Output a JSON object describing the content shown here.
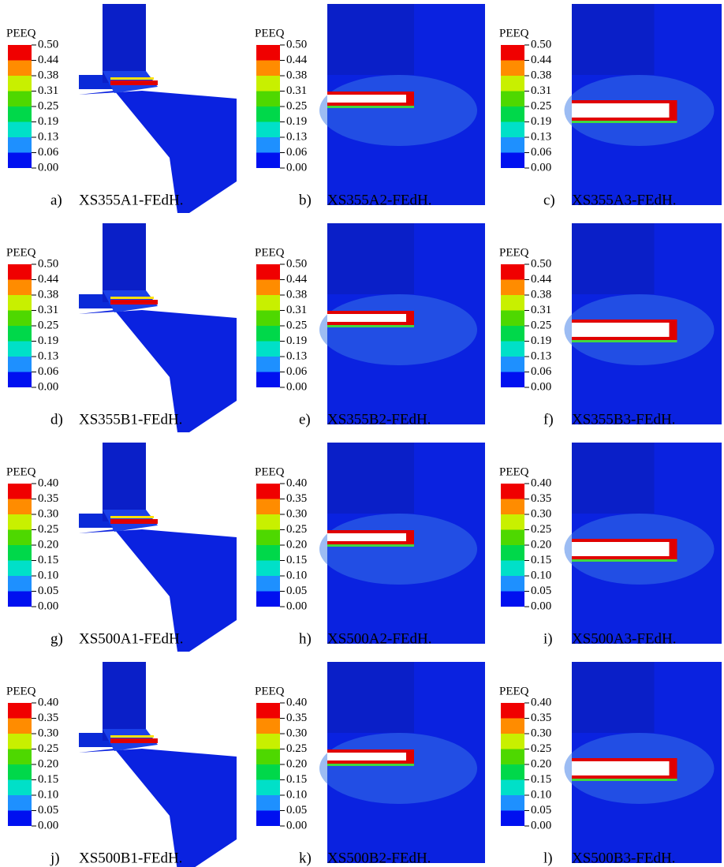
{
  "panels": [
    {
      "label": "a)",
      "caption": "XS355A1-FEdH.",
      "legend": {
        "title": "PEEQ",
        "labels": [
          "0.50",
          "0.44",
          "0.38",
          "0.31",
          "0.25",
          "0.19",
          "0.13",
          "0.06",
          "0.00"
        ]
      }
    },
    {
      "label": "b)",
      "caption": "XS355A2-FEdH.",
      "legend": {
        "title": "PEEQ",
        "labels": [
          "0.50",
          "0.44",
          "0.38",
          "0.31",
          "0.25",
          "0.19",
          "0.13",
          "0.06",
          "0.00"
        ]
      }
    },
    {
      "label": "c)",
      "caption": "XS355A3-FEdH.",
      "legend": {
        "title": "PEEQ",
        "labels": [
          "0.50",
          "0.44",
          "0.38",
          "0.31",
          "0.25",
          "0.19",
          "0.13",
          "0.06",
          "0.00"
        ]
      }
    },
    {
      "label": "d)",
      "caption": "XS355B1-FEdH.",
      "legend": {
        "title": "PEEQ",
        "labels": [
          "0.50",
          "0.44",
          "0.38",
          "0.31",
          "0.25",
          "0.19",
          "0.13",
          "0.06",
          "0.00"
        ]
      }
    },
    {
      "label": "e)",
      "caption": "XS355B2-FEdH.",
      "legend": {
        "title": "PEEQ",
        "labels": [
          "0.50",
          "0.44",
          "0.38",
          "0.31",
          "0.25",
          "0.19",
          "0.13",
          "0.06",
          "0.00"
        ]
      }
    },
    {
      "label": "f)",
      "caption": "XS355B3-FEdH.",
      "legend": {
        "title": "PEEQ",
        "labels": [
          "0.50",
          "0.44",
          "0.38",
          "0.31",
          "0.25",
          "0.19",
          "0.13",
          "0.06",
          "0.00"
        ]
      }
    },
    {
      "label": "g)",
      "caption": "XS500A1-FEdH.",
      "legend": {
        "title": "PEEQ",
        "labels": [
          "0.40",
          "0.35",
          "0.30",
          "0.25",
          "0.20",
          "0.15",
          "0.10",
          "0.05",
          "0.00"
        ]
      }
    },
    {
      "label": "h)",
      "caption": "XS500A2-FEdH.",
      "legend": {
        "title": "PEEQ",
        "labels": [
          "0.40",
          "0.35",
          "0.30",
          "0.25",
          "0.20",
          "0.15",
          "0.10",
          "0.05",
          "0.00"
        ]
      }
    },
    {
      "label": "i)",
      "caption": "XS500A3-FEdH.",
      "legend": {
        "title": "PEEQ",
        "labels": [
          "0.40",
          "0.35",
          "0.30",
          "0.25",
          "0.20",
          "0.15",
          "0.10",
          "0.05",
          "0.00"
        ]
      }
    },
    {
      "label": "j)",
      "caption": "XS500B1-FEdH.",
      "legend": {
        "title": "PEEQ",
        "labels": [
          "0.40",
          "0.35",
          "0.30",
          "0.25",
          "0.20",
          "0.15",
          "0.10",
          "0.05",
          "0.00"
        ]
      }
    },
    {
      "label": "k)",
      "caption": "XS500B2-FEdH.",
      "legend": {
        "title": "PEEQ",
        "labels": [
          "0.40",
          "0.35",
          "0.30",
          "0.25",
          "0.20",
          "0.15",
          "0.10",
          "0.05",
          "0.00"
        ]
      }
    },
    {
      "label": "l)",
      "caption": "XS500B3-FEdH.",
      "legend": {
        "title": "PEEQ",
        "labels": [
          "0.40",
          "0.35",
          "0.30",
          "0.25",
          "0.20",
          "0.15",
          "0.10",
          "0.05",
          "0.00"
        ]
      }
    }
  ]
}
